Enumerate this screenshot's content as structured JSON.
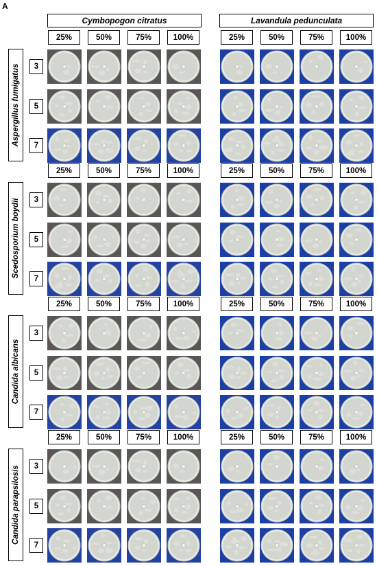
{
  "panel_label": "A",
  "species": [
    "Cymbopogon citratus",
    "Lavandula pedunculata"
  ],
  "concentrations": [
    "25%",
    "50%",
    "75%",
    "100%"
  ],
  "organisms": [
    "Aspergillus fumigatus",
    "Scedosporium boydii",
    "Candida albicans",
    "Candida parapsilosis"
  ],
  "days": [
    "3",
    "5",
    "7"
  ],
  "colors": {
    "cymbopogon_background": "#5a5656",
    "lavandula_background": "#1c3fa4",
    "day7_cymbopogon_background": "#2442a0",
    "agar": "#d3d6cf",
    "disc": "#f7f7f2"
  }
}
